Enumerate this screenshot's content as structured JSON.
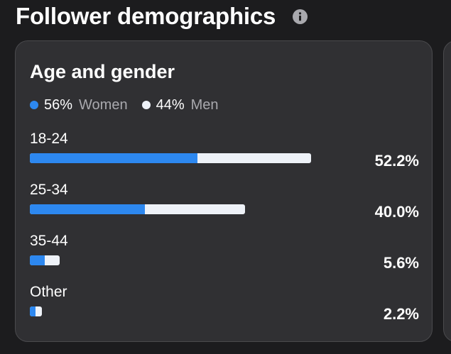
{
  "page": {
    "title": "Follower demographics",
    "info_icon": "info-icon"
  },
  "card": {
    "title": "Age and gender",
    "legend": {
      "women": {
        "pct": "56%",
        "label": "Women"
      },
      "men": {
        "pct": "44%",
        "label": "Men"
      }
    },
    "rows": [
      {
        "label": "18-24",
        "pct": "52.2%",
        "share": 52.2,
        "women_fraction": 0.595
      },
      {
        "label": "25-34",
        "pct": "40.0%",
        "share": 40.0,
        "women_fraction": 0.535
      },
      {
        "label": "35-44",
        "pct": "5.6%",
        "share": 5.6,
        "women_fraction": 0.5
      },
      {
        "label": "Other",
        "pct": "2.2%",
        "share": 2.2,
        "women_fraction": 0.5
      }
    ]
  },
  "colors": {
    "women": "#2d88f0",
    "men": "#eef2f8",
    "background": "#1c1c1e",
    "card": "#303033"
  }
}
